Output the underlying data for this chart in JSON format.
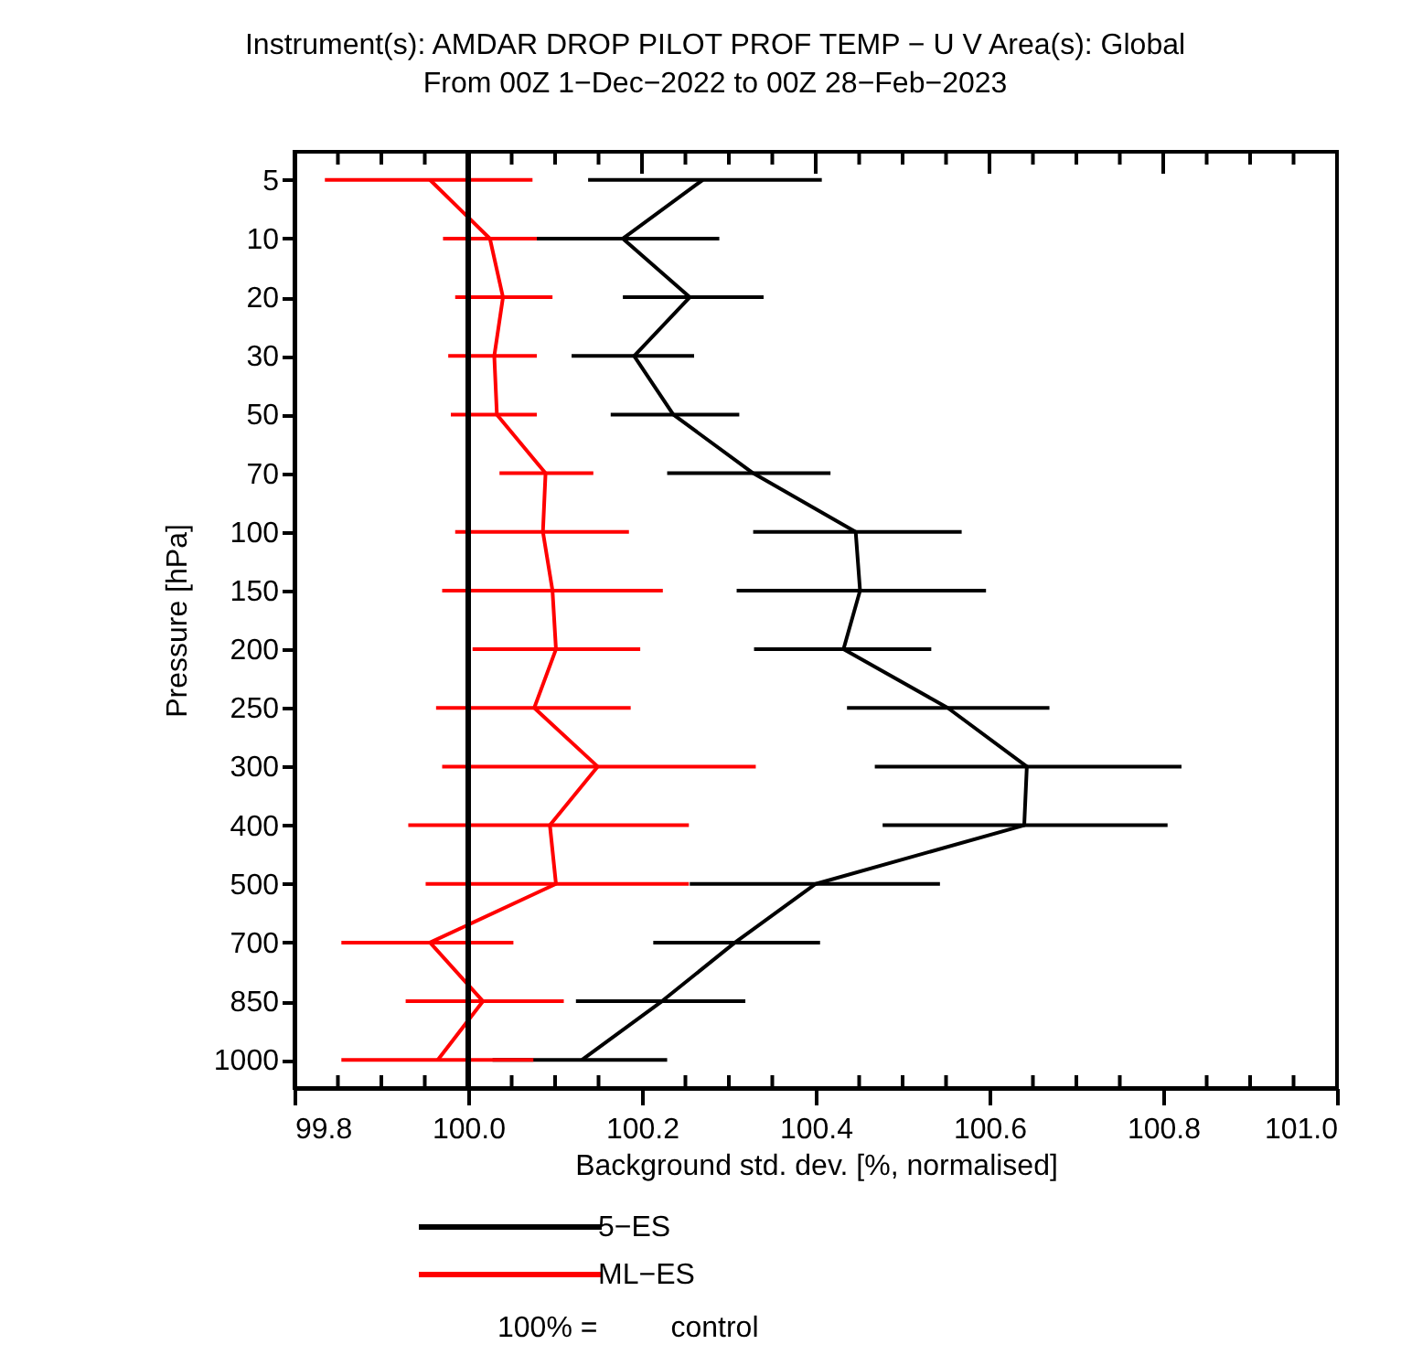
{
  "chart_data": {
    "type": "line",
    "orientation": "horizontal",
    "title": "Instrument(s): AMDAR DROP PILOT PROF TEMP − U V       Area(s): Global",
    "subtitle": "From 00Z  1−Dec−2022 to 00Z 28−Feb−2023",
    "xlabel": "Background std. dev. [%, normalised]",
    "ylabel": "Pressure [hPa]",
    "categories": [
      "5",
      "10",
      "20",
      "30",
      "50",
      "70",
      "100",
      "150",
      "200",
      "250",
      "300",
      "400",
      "500",
      "700",
      "850",
      "1000"
    ],
    "xlim": [
      99.8,
      101.0
    ],
    "xticks": [
      99.8,
      {
        "value": 99.85,
        "label": null
      },
      {
        "value": 99.9,
        "label": null
      },
      {
        "value": 99.95,
        "label": null
      },
      {
        "value": 100,
        "label": "100.0"
      },
      {
        "value": 100.05,
        "label": null
      },
      {
        "value": 100.1,
        "label": null
      },
      {
        "value": 100.15,
        "label": null
      },
      100.2,
      {
        "value": 100.25,
        "label": null
      },
      {
        "value": 100.3,
        "label": null
      },
      {
        "value": 100.35,
        "label": null
      },
      100.4,
      {
        "value": 100.45,
        "label": null
      },
      {
        "value": 100.5,
        "label": null
      },
      {
        "value": 100.55,
        "label": null
      },
      100.6,
      {
        "value": 100.65,
        "label": null
      },
      {
        "value": 100.7,
        "label": null
      },
      {
        "value": 100.75,
        "label": null
      },
      100.8,
      {
        "value": 100.85,
        "label": null
      },
      {
        "value": 100.9,
        "label": null
      },
      {
        "value": 100.95,
        "label": null
      },
      {
        "value": 101,
        "label": "101.0"
      }
    ],
    "series": [
      {
        "name": "5−ES",
        "color": "#000000",
        "values": [
          100.27,
          100.178,
          100.255,
          100.191,
          100.236,
          100.328,
          100.446,
          100.451,
          100.432,
          100.552,
          100.643,
          100.64,
          100.4,
          100.307,
          100.223,
          100.131
        ],
        "errors": [
          [
            100.138,
            100.407
          ],
          [
            100.065,
            100.289
          ],
          [
            100.178,
            100.34
          ],
          [
            100.119,
            100.26
          ],
          [
            100.164,
            100.312
          ],
          [
            100.229,
            100.417
          ],
          [
            100.328,
            100.568
          ],
          [
            100.309,
            100.596
          ],
          [
            100.329,
            100.533
          ],
          [
            100.436,
            100.669
          ],
          [
            100.468,
            100.821
          ],
          [
            100.477,
            100.805
          ],
          [
            100.255,
            100.543
          ],
          [
            100.213,
            100.405
          ],
          [
            100.124,
            100.319
          ],
          [
            100.028,
            100.229
          ]
        ]
      },
      {
        "name": "ML−ES",
        "color": "#ff0000",
        "values": [
          99.956,
          100.025,
          100.04,
          100.03,
          100.033,
          100.089,
          100.086,
          100.097,
          100.101,
          100.076,
          100.149,
          100.094,
          100.101,
          99.956,
          100.017,
          99.965
        ],
        "errors": [
          [
            99.835,
            100.074
          ],
          [
            99.971,
            100.079
          ],
          [
            99.985,
            100.097
          ],
          [
            99.977,
            100.079
          ],
          [
            99.98,
            100.079
          ],
          [
            100.036,
            100.144
          ],
          [
            99.985,
            100.185
          ],
          [
            99.97,
            100.224
          ],
          [
            100.005,
            100.198
          ],
          [
            99.963,
            100.187
          ],
          [
            99.97,
            100.331
          ],
          [
            99.931,
            100.254
          ],
          [
            99.951,
            100.254
          ],
          [
            99.854,
            100.052
          ],
          [
            99.928,
            100.11
          ],
          [
            99.854,
            100.075
          ]
        ]
      }
    ],
    "ref_lines": [
      {
        "axis": "x",
        "value": 100,
        "color": "#000000"
      }
    ],
    "annotations": [
      "100% = control"
    ],
    "grid": false,
    "legend": "bottom",
    "marker": "none",
    "line_style": "solid"
  }
}
